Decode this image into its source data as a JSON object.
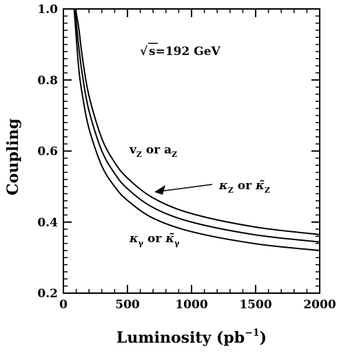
{
  "chart_data": {
    "type": "line",
    "title": "",
    "xlabel_main": "Luminosity (pb",
    "xlabel_sup": "−1",
    "xlabel_close": ")",
    "ylabel": "Coupling",
    "xlim": [
      0,
      2000
    ],
    "ylim": [
      0.2,
      1.0
    ],
    "x_ticks": [
      0,
      500,
      1000,
      1500,
      2000
    ],
    "x_tick_labels": [
      "0",
      "500",
      "1000",
      "1500",
      "2000"
    ],
    "y_ticks": [
      0.2,
      0.4,
      0.6,
      0.8,
      1.0
    ],
    "y_tick_labels": [
      "0.2",
      "0.4",
      "0.6",
      "0.8",
      "1.0"
    ],
    "grid": false,
    "legend": "none",
    "series": [
      {
        "x": [
          95,
          120,
          150,
          200,
          300,
          400,
          500,
          700,
          1000,
          1500,
          2000
        ],
        "y": [
          1.0,
          0.946,
          0.859,
          0.755,
          0.635,
          0.568,
          0.524,
          0.468,
          0.424,
          0.386,
          0.365
        ]
      },
      {
        "x": [
          90,
          120,
          150,
          200,
          300,
          400,
          500,
          700,
          1000,
          1500,
          2000
        ],
        "y": [
          1.0,
          0.893,
          0.81,
          0.713,
          0.6,
          0.537,
          0.494,
          0.441,
          0.4,
          0.364,
          0.344
        ]
      },
      {
        "x": [
          84,
          120,
          150,
          200,
          300,
          400,
          500,
          700,
          1000,
          1500,
          2000
        ],
        "y": [
          1.0,
          0.832,
          0.754,
          0.663,
          0.558,
          0.5,
          0.461,
          0.411,
          0.373,
          0.339,
          0.32
        ]
      }
    ],
    "annotations": {
      "sqrt_symbol": "√",
      "energy": "s=192 GeV",
      "vz_v": "v",
      "vz_sub1": "Z",
      "vz_or": "or a",
      "vz_sub2": "Z",
      "kz_k": "κ",
      "kz_sub1": "Z",
      "kz_or": "or",
      "kz_k2": "κ̃",
      "kz_sub2": "Z",
      "kg_k": "κ",
      "kg_sub1": "γ",
      "kg_or": "or",
      "kg_k2": "κ̃",
      "kg_sub2": "γ"
    }
  }
}
